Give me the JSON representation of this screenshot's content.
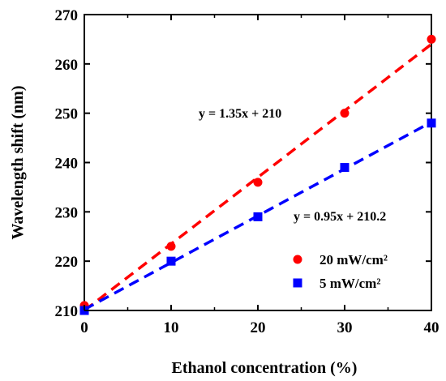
{
  "chart_data": {
    "type": "scatter",
    "xlabel": "Ethanol concentration  (%)",
    "ylabel": "Wavelength shift  (nm)",
    "xlim": [
      0,
      40
    ],
    "ylim": [
      210,
      270
    ],
    "xticks": [
      0,
      10,
      20,
      30,
      40
    ],
    "yticks": [
      210,
      220,
      230,
      240,
      250,
      260,
      270
    ],
    "grid": false,
    "legend_position": "bottom-right",
    "series": [
      {
        "name": "20 mW/cm²",
        "marker": "circle",
        "color": "#ff0000",
        "x": [
          0,
          10,
          20,
          30,
          40
        ],
        "y": [
          211,
          223,
          236,
          250,
          265
        ],
        "fit": {
          "slope": 1.35,
          "intercept": 210,
          "label": "y = 1.35x + 210",
          "style": "dashed"
        }
      },
      {
        "name": "5 mW/cm²",
        "marker": "square",
        "color": "#0000ff",
        "x": [
          0,
          10,
          20,
          30,
          40
        ],
        "y": [
          210,
          220,
          229,
          239,
          248
        ],
        "fit": {
          "slope": 0.95,
          "intercept": 210.2,
          "label": "y = 0.95x + 210.2",
          "style": "dashed"
        }
      }
    ]
  }
}
